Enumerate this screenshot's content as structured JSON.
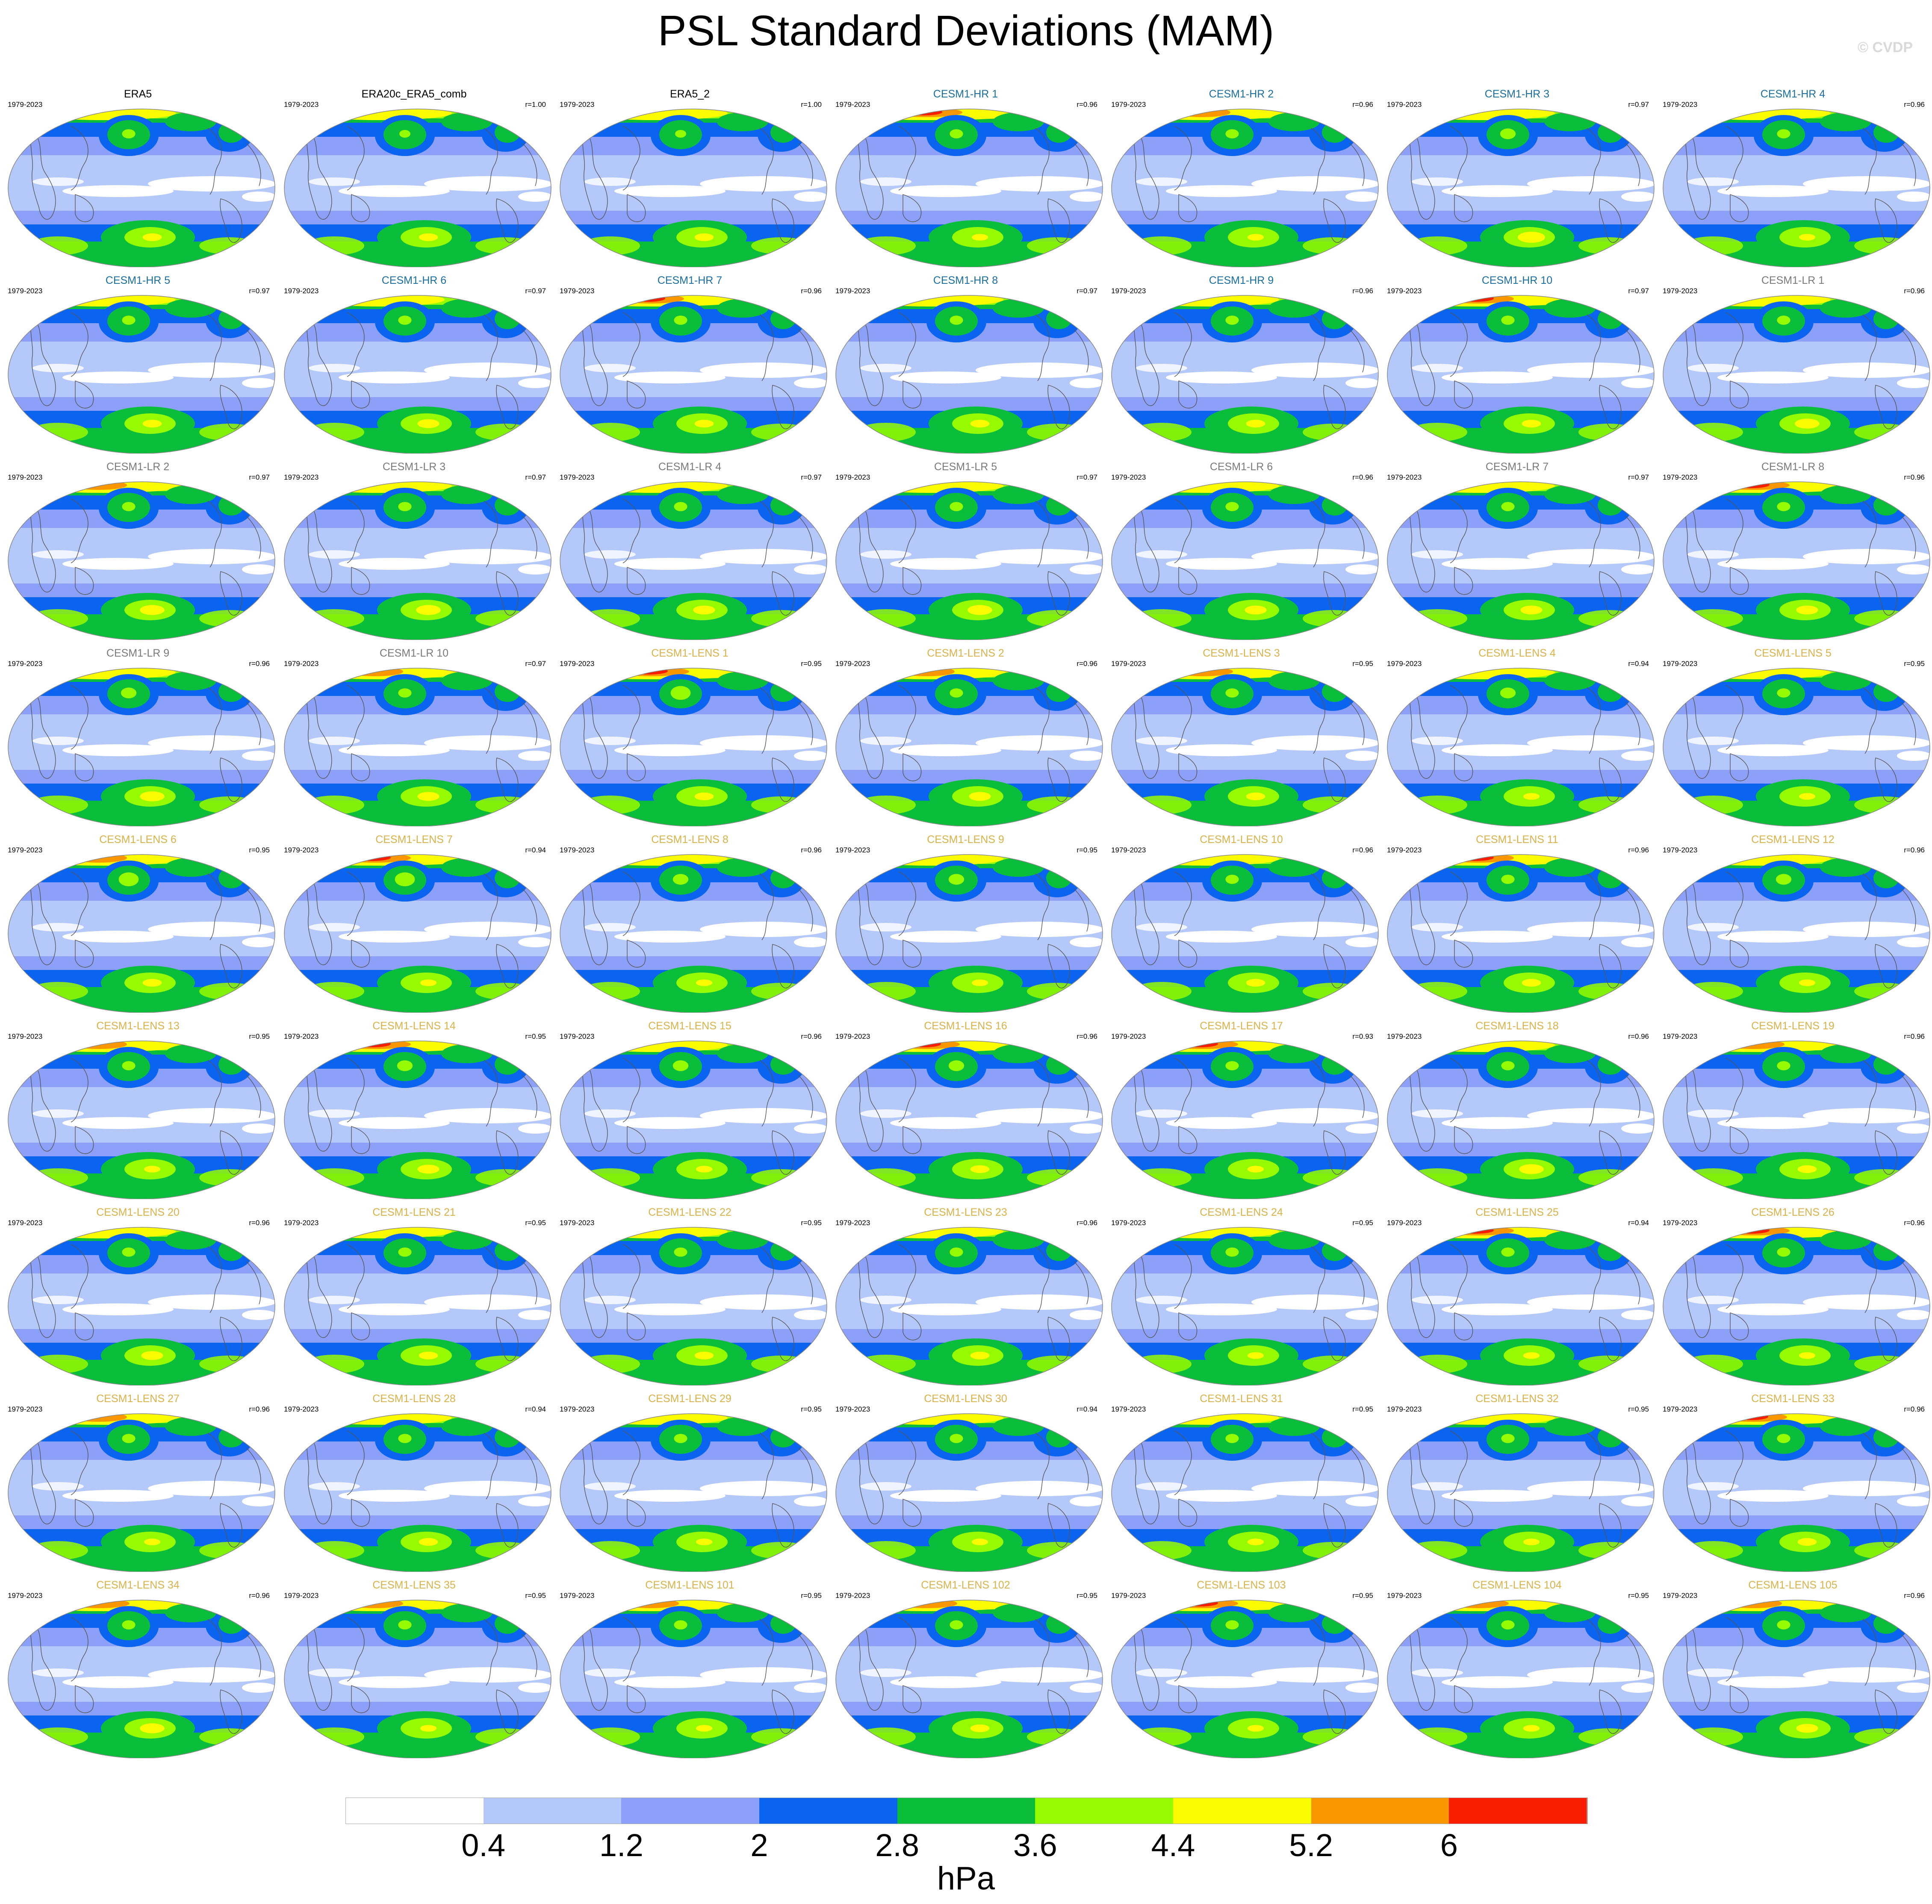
{
  "title": "PSL Standard Deviations (MAM)",
  "copyright": "© CVDP",
  "period": "1979-2023",
  "group_colors": {
    "obs": "#000000",
    "CESM1-HR": "#1a6fa0",
    "CESM1-LR": "#7a7a7a",
    "CESM1-LENS": "#d9b24a"
  },
  "panels": [
    {
      "name": "ERA5",
      "group": "obs",
      "r": ""
    },
    {
      "name": "ERA20c_ERA5_comb",
      "group": "obs",
      "r": "r=1.00",
      "hot": [
        1.0,
        0.5,
        0.7
      ]
    },
    {
      "name": "ERA5_2",
      "group": "obs",
      "r": "r=1.00",
      "hot": [
        1.0,
        0.5,
        0.7
      ]
    },
    {
      "name": "CESM1-HR 1",
      "group": "CESM1-HR",
      "r": "r=0.96",
      "hot": [
        1.4,
        0.6,
        0.6
      ]
    },
    {
      "name": "CESM1-HR 2",
      "group": "CESM1-HR",
      "r": "r=0.96",
      "hot": [
        1.1,
        0.6,
        0.6
      ]
    },
    {
      "name": "CESM1-HR 3",
      "group": "CESM1-HR",
      "r": "r=0.97",
      "hot": [
        1.0,
        0.7,
        1.0
      ]
    },
    {
      "name": "CESM1-HR 4",
      "group": "CESM1-HR",
      "r": "r=0.96",
      "hot": [
        1.0,
        0.6,
        0.6
      ]
    },
    {
      "name": "CESM1-HR 5",
      "group": "CESM1-HR",
      "r": "r=0.97",
      "hot": [
        1.0,
        0.6,
        0.7
      ]
    },
    {
      "name": "CESM1-HR 6",
      "group": "CESM1-HR",
      "r": "r=0.97",
      "hot": [
        0.9,
        0.6,
        0.8
      ]
    },
    {
      "name": "CESM1-HR 7",
      "group": "CESM1-HR",
      "r": "r=0.96",
      "hot": [
        1.3,
        0.6,
        0.7
      ]
    },
    {
      "name": "CESM1-HR 8",
      "group": "CESM1-HR",
      "r": "r=0.97",
      "hot": [
        1.0,
        0.6,
        0.7
      ]
    },
    {
      "name": "CESM1-HR 9",
      "group": "CESM1-HR",
      "r": "r=0.96",
      "hot": [
        1.0,
        0.6,
        0.7
      ]
    },
    {
      "name": "CESM1-HR 10",
      "group": "CESM1-HR",
      "r": "r=0.97",
      "hot": [
        1.4,
        0.6,
        0.7
      ]
    },
    {
      "name": "CESM1-LR 1",
      "group": "CESM1-LR",
      "r": "r=0.96",
      "hot": [
        1.0,
        0.6,
        0.9
      ]
    },
    {
      "name": "CESM1-LR 2",
      "group": "CESM1-LR",
      "r": "r=0.97",
      "hot": [
        1.1,
        0.6,
        0.9
      ]
    },
    {
      "name": "CESM1-LR 3",
      "group": "CESM1-LR",
      "r": "r=0.97",
      "hot": [
        1.0,
        0.6,
        0.9
      ]
    },
    {
      "name": "CESM1-LR 4",
      "group": "CESM1-LR",
      "r": "r=0.97",
      "hot": [
        1.0,
        0.6,
        0.8
      ]
    },
    {
      "name": "CESM1-LR 5",
      "group": "CESM1-LR",
      "r": "r=0.97",
      "hot": [
        1.0,
        0.6,
        0.9
      ]
    },
    {
      "name": "CESM1-LR 6",
      "group": "CESM1-LR",
      "r": "r=0.96",
      "hot": [
        1.0,
        0.6,
        0.8
      ]
    },
    {
      "name": "CESM1-LR 7",
      "group": "CESM1-LR",
      "r": "r=0.97",
      "hot": [
        1.0,
        0.6,
        0.8
      ]
    },
    {
      "name": "CESM1-LR 8",
      "group": "CESM1-LR",
      "r": "r=0.96",
      "hot": [
        1.4,
        0.6,
        0.8
      ]
    },
    {
      "name": "CESM1-LR 9",
      "group": "CESM1-LR",
      "r": "r=0.96",
      "hot": [
        1.0,
        0.7,
        0.9
      ]
    },
    {
      "name": "CESM1-LR 10",
      "group": "CESM1-LR",
      "r": "r=0.97",
      "hot": [
        1.1,
        0.6,
        0.8
      ]
    },
    {
      "name": "CESM1-LENS 1",
      "group": "CESM1-LENS",
      "r": "r=0.95",
      "hot": [
        1.5,
        0.9,
        0.7
      ]
    },
    {
      "name": "CESM1-LENS 2",
      "group": "CESM1-LENS",
      "r": "r=0.96",
      "hot": [
        1.1,
        0.6,
        0.8
      ]
    },
    {
      "name": "CESM1-LENS 3",
      "group": "CESM1-LENS",
      "r": "r=0.95",
      "hot": [
        1.2,
        0.6,
        0.7
      ]
    },
    {
      "name": "CESM1-LENS 4",
      "group": "CESM1-LENS",
      "r": "r=0.94",
      "hot": [
        1.0,
        0.7,
        0.6
      ]
    },
    {
      "name": "CESM1-LENS 5",
      "group": "CESM1-LENS",
      "r": "r=0.95",
      "hot": [
        1.0,
        0.6,
        0.6
      ]
    },
    {
      "name": "CESM1-LENS 6",
      "group": "CESM1-LENS",
      "r": "r=0.95",
      "hot": [
        1.1,
        0.9,
        0.7
      ]
    },
    {
      "name": "CESM1-LENS 7",
      "group": "CESM1-LENS",
      "r": "r=0.94",
      "hot": [
        1.4,
        0.9,
        0.6
      ]
    },
    {
      "name": "CESM1-LENS 8",
      "group": "CESM1-LENS",
      "r": "r=0.96",
      "hot": [
        1.0,
        0.7,
        0.6
      ]
    },
    {
      "name": "CESM1-LENS 9",
      "group": "CESM1-LENS",
      "r": "r=0.95",
      "hot": [
        1.0,
        0.7,
        0.6
      ]
    },
    {
      "name": "CESM1-LENS 10",
      "group": "CESM1-LENS",
      "r": "r=0.96",
      "hot": [
        1.0,
        0.6,
        0.7
      ]
    },
    {
      "name": "CESM1-LENS 11",
      "group": "CESM1-LENS",
      "r": "r=0.96",
      "hot": [
        1.4,
        0.6,
        0.7
      ]
    },
    {
      "name": "CESM1-LENS 12",
      "group": "CESM1-LENS",
      "r": "r=0.96",
      "hot": [
        1.0,
        0.7,
        0.6
      ]
    },
    {
      "name": "CESM1-LENS 13",
      "group": "CESM1-LENS",
      "r": "r=0.95",
      "hot": [
        1.1,
        0.6,
        0.6
      ]
    },
    {
      "name": "CESM1-LENS 14",
      "group": "CESM1-LENS",
      "r": "r=0.95",
      "hot": [
        1.4,
        0.7,
        0.8
      ]
    },
    {
      "name": "CESM1-LENS 15",
      "group": "CESM1-LENS",
      "r": "r=0.96",
      "hot": [
        1.0,
        0.7,
        0.6
      ]
    },
    {
      "name": "CESM1-LENS 16",
      "group": "CESM1-LENS",
      "r": "r=0.96",
      "hot": [
        1.3,
        0.7,
        0.7
      ]
    },
    {
      "name": "CESM1-LENS 17",
      "group": "CESM1-LENS",
      "r": "r=0.93",
      "hot": [
        1.4,
        0.6,
        0.6
      ]
    },
    {
      "name": "CESM1-LENS 18",
      "group": "CESM1-LENS",
      "r": "r=0.96",
      "hot": [
        1.0,
        0.6,
        0.9
      ]
    },
    {
      "name": "CESM1-LENS 19",
      "group": "CESM1-LENS",
      "r": "r=0.96",
      "hot": [
        1.2,
        0.6,
        0.7
      ]
    },
    {
      "name": "CESM1-LENS 20",
      "group": "CESM1-LENS",
      "r": "r=0.96",
      "hot": [
        1.0,
        0.6,
        0.8
      ]
    },
    {
      "name": "CESM1-LENS 21",
      "group": "CESM1-LENS",
      "r": "r=0.95",
      "hot": [
        1.0,
        0.6,
        0.7
      ]
    },
    {
      "name": "CESM1-LENS 22",
      "group": "CESM1-LENS",
      "r": "r=0.95",
      "hot": [
        1.0,
        0.6,
        0.7
      ]
    },
    {
      "name": "CESM1-LENS 23",
      "group": "CESM1-LENS",
      "r": "r=0.96",
      "hot": [
        1.0,
        0.6,
        0.7
      ]
    },
    {
      "name": "CESM1-LENS 24",
      "group": "CESM1-LENS",
      "r": "r=0.95",
      "hot": [
        1.0,
        0.6,
        0.6
      ]
    },
    {
      "name": "CESM1-LENS 25",
      "group": "CESM1-LENS",
      "r": "r=0.94",
      "hot": [
        1.4,
        0.6,
        0.6
      ]
    },
    {
      "name": "CESM1-LENS 26",
      "group": "CESM1-LENS",
      "r": "r=0.96",
      "hot": [
        1.4,
        0.6,
        0.6
      ]
    },
    {
      "name": "CESM1-LENS 27",
      "group": "CESM1-LENS",
      "r": "r=0.96",
      "hot": [
        1.1,
        0.6,
        0.6
      ]
    },
    {
      "name": "CESM1-LENS 28",
      "group": "CESM1-LENS",
      "r": "r=0.94",
      "hot": [
        1.0,
        0.6,
        0.7
      ]
    },
    {
      "name": "CESM1-LENS 29",
      "group": "CESM1-LENS",
      "r": "r=0.95",
      "hot": [
        1.0,
        0.6,
        0.6
      ]
    },
    {
      "name": "CESM1-LENS 30",
      "group": "CESM1-LENS",
      "r": "r=0.94",
      "hot": [
        1.0,
        0.6,
        0.6
      ]
    },
    {
      "name": "CESM1-LENS 31",
      "group": "CESM1-LENS",
      "r": "r=0.95",
      "hot": [
        1.0,
        0.6,
        0.6
      ]
    },
    {
      "name": "CESM1-LENS 32",
      "group": "CESM1-LENS",
      "r": "r=0.95",
      "hot": [
        1.0,
        0.6,
        0.6
      ]
    },
    {
      "name": "CESM1-LENS 33",
      "group": "CESM1-LENS",
      "r": "r=0.96",
      "hot": [
        1.3,
        0.6,
        0.7
      ]
    },
    {
      "name": "CESM1-LENS 34",
      "group": "CESM1-LENS",
      "r": "r=0.96",
      "hot": [
        1.2,
        0.6,
        0.9
      ]
    },
    {
      "name": "CESM1-LENS 35",
      "group": "CESM1-LENS",
      "r": "r=0.95",
      "hot": [
        1.1,
        0.6,
        0.6
      ]
    },
    {
      "name": "CESM1-LENS 101",
      "group": "CESM1-LENS",
      "r": "r=0.95",
      "hot": [
        1.1,
        0.6,
        0.6
      ]
    },
    {
      "name": "CESM1-LENS 102",
      "group": "CESM1-LENS",
      "r": "r=0.95",
      "hot": [
        1.2,
        0.6,
        0.7
      ]
    },
    {
      "name": "CESM1-LENS 103",
      "group": "CESM1-LENS",
      "r": "r=0.95",
      "hot": [
        1.4,
        0.6,
        0.6
      ]
    },
    {
      "name": "CESM1-LENS 104",
      "group": "CESM1-LENS",
      "r": "r=0.95",
      "hot": [
        1.2,
        0.6,
        0.6
      ]
    },
    {
      "name": "CESM1-LENS 105",
      "group": "CESM1-LENS",
      "r": "r=0.96",
      "hot": [
        1.1,
        0.6,
        0.8
      ]
    }
  ],
  "colorbar": {
    "colors": [
      "#ffffff",
      "#b4c8fa",
      "#8ca0fa",
      "#0a64f0",
      "#0abe3c",
      "#96fa00",
      "#fafa00",
      "#fa9600",
      "#fa1e00"
    ],
    "ticks": [
      "0.4",
      "1.2",
      "2",
      "2.8",
      "3.6",
      "4.4",
      "5.2",
      "6"
    ],
    "units": "hPa"
  }
}
